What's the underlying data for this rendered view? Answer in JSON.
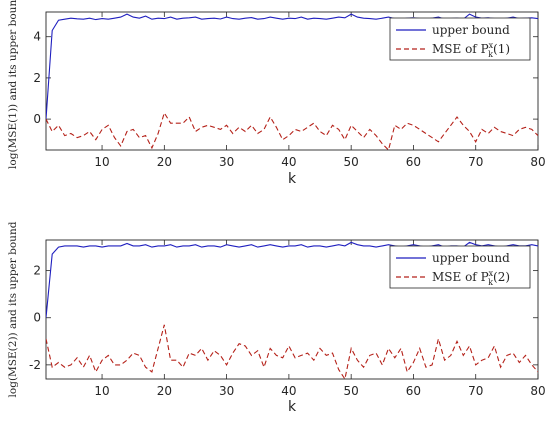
{
  "chart_data": [
    {
      "type": "line",
      "xlabel": "k",
      "ylabel": "log(MSE(1)) and its upper bound",
      "xlim": [
        1,
        80
      ],
      "ylim": [
        -1.5,
        5.2
      ],
      "xticks": [
        10,
        20,
        30,
        40,
        50,
        60,
        70,
        80
      ],
      "yticks": [
        0,
        2,
        4
      ],
      "legend_position": "top-right",
      "x": [
        1,
        2,
        3,
        4,
        5,
        6,
        7,
        8,
        9,
        10,
        11,
        12,
        13,
        14,
        15,
        16,
        17,
        18,
        19,
        20,
        21,
        22,
        23,
        24,
        25,
        26,
        27,
        28,
        29,
        30,
        31,
        32,
        33,
        34,
        35,
        36,
        37,
        38,
        39,
        40,
        41,
        42,
        43,
        44,
        45,
        46,
        47,
        48,
        49,
        50,
        51,
        52,
        53,
        54,
        55,
        56,
        57,
        58,
        59,
        60,
        61,
        62,
        63,
        64,
        65,
        66,
        67,
        68,
        69,
        70,
        71,
        72,
        73,
        74,
        75,
        76,
        77,
        78,
        79,
        80
      ],
      "series": [
        {
          "name": "upper bound",
          "label_text": "upper bound",
          "style": "solid",
          "color": "#1f1fbf",
          "values": [
            0.0,
            4.3,
            4.8,
            4.85,
            4.9,
            4.87,
            4.85,
            4.9,
            4.83,
            4.88,
            4.85,
            4.9,
            4.95,
            5.1,
            4.95,
            4.9,
            5.0,
            4.85,
            4.9,
            4.88,
            4.95,
            4.85,
            4.9,
            4.92,
            4.95,
            4.85,
            4.88,
            4.9,
            4.86,
            4.95,
            4.88,
            4.85,
            4.9,
            4.93,
            4.85,
            4.88,
            4.95,
            4.9,
            4.85,
            4.9,
            4.88,
            4.95,
            4.85,
            4.9,
            4.88,
            4.85,
            4.9,
            4.95,
            4.92,
            5.1,
            4.95,
            4.9,
            4.88,
            4.85,
            4.9,
            4.95,
            4.88,
            4.85,
            4.9,
            4.92,
            4.88,
            4.85,
            4.9,
            4.95,
            4.85,
            4.88,
            4.9,
            4.85,
            5.1,
            4.95,
            4.9,
            4.92,
            4.88,
            4.85,
            4.9,
            4.95,
            4.88,
            4.9,
            4.92,
            4.88
          ]
        },
        {
          "name": "MSE of P_k^x(1)",
          "label_text": "MSE of P",
          "label_sub": "k",
          "label_sup": "x",
          "label_tail": "(1)",
          "style": "dashed",
          "color": "#b5221a",
          "values": [
            0.0,
            -0.6,
            -0.3,
            -0.8,
            -0.7,
            -0.9,
            -0.8,
            -0.6,
            -1.0,
            -0.5,
            -0.3,
            -0.9,
            -1.3,
            -0.6,
            -0.5,
            -0.9,
            -0.8,
            -1.4,
            -0.7,
            0.3,
            -0.2,
            -0.2,
            -0.2,
            0.1,
            -0.6,
            -0.4,
            -0.3,
            -0.4,
            -0.5,
            -0.3,
            -0.7,
            -0.4,
            -0.6,
            -0.3,
            -0.7,
            -0.5,
            0.1,
            -0.4,
            -1.0,
            -0.8,
            -0.5,
            -0.6,
            -0.4,
            -0.2,
            -0.6,
            -0.8,
            -0.3,
            -0.5,
            -1.0,
            -0.3,
            -0.6,
            -0.9,
            -0.5,
            -0.8,
            -1.2,
            -1.5,
            -0.3,
            -0.5,
            -0.2,
            -0.3,
            -0.5,
            -0.7,
            -0.9,
            -1.1,
            -0.7,
            -0.3,
            0.1,
            -0.3,
            -0.6,
            -1.1,
            -0.5,
            -0.7,
            -0.4,
            -0.6,
            -0.7,
            -0.8,
            -0.5,
            -0.4,
            -0.5,
            -0.8
          ]
        }
      ]
    },
    {
      "type": "line",
      "xlabel": "k",
      "ylabel": "log(MSE(2)) and its upper bound",
      "xlim": [
        1,
        80
      ],
      "ylim": [
        -2.6,
        3.3
      ],
      "xticks": [
        10,
        20,
        30,
        40,
        50,
        60,
        70,
        80
      ],
      "yticks": [
        -2,
        0,
        2
      ],
      "legend_position": "top-right",
      "x": [
        1,
        2,
        3,
        4,
        5,
        6,
        7,
        8,
        9,
        10,
        11,
        12,
        13,
        14,
        15,
        16,
        17,
        18,
        19,
        20,
        21,
        22,
        23,
        24,
        25,
        26,
        27,
        28,
        29,
        30,
        31,
        32,
        33,
        34,
        35,
        36,
        37,
        38,
        39,
        40,
        41,
        42,
        43,
        44,
        45,
        46,
        47,
        48,
        49,
        50,
        51,
        52,
        53,
        54,
        55,
        56,
        57,
        58,
        59,
        60,
        61,
        62,
        63,
        64,
        65,
        66,
        67,
        68,
        69,
        70,
        71,
        72,
        73,
        74,
        75,
        76,
        77,
        78,
        79,
        80
      ],
      "series": [
        {
          "name": "upper bound",
          "label_text": "upper bound",
          "style": "solid",
          "color": "#1f1fbf",
          "values": [
            0.0,
            2.7,
            3.0,
            3.05,
            3.05,
            3.05,
            3.0,
            3.05,
            3.05,
            3.0,
            3.05,
            3.05,
            3.05,
            3.15,
            3.05,
            3.05,
            3.1,
            3.0,
            3.05,
            3.05,
            3.1,
            3.0,
            3.05,
            3.05,
            3.1,
            3.0,
            3.05,
            3.05,
            3.0,
            3.1,
            3.05,
            3.0,
            3.05,
            3.1,
            3.0,
            3.05,
            3.1,
            3.05,
            3.0,
            3.05,
            3.05,
            3.1,
            3.0,
            3.05,
            3.05,
            3.0,
            3.05,
            3.1,
            3.05,
            3.2,
            3.1,
            3.05,
            3.05,
            3.0,
            3.05,
            3.1,
            3.05,
            3.0,
            3.05,
            3.1,
            3.05,
            3.0,
            3.05,
            3.1,
            3.0,
            3.05,
            3.05,
            3.0,
            3.2,
            3.1,
            3.05,
            3.1,
            3.05,
            3.0,
            3.05,
            3.1,
            3.05,
            3.05,
            3.1,
            3.05
          ]
        },
        {
          "name": "MSE of P_k^x(2)",
          "label_text": "MSE of P",
          "label_sub": "k",
          "label_sup": "x",
          "label_tail": "(2)",
          "style": "dashed",
          "color": "#b5221a",
          "values": [
            -0.9,
            -2.1,
            -1.9,
            -2.1,
            -2.0,
            -1.7,
            -2.1,
            -1.6,
            -2.3,
            -1.8,
            -1.6,
            -2.0,
            -2.0,
            -1.8,
            -1.5,
            -1.6,
            -2.1,
            -2.3,
            -1.3,
            -0.3,
            -1.8,
            -1.8,
            -2.1,
            -1.5,
            -1.6,
            -1.3,
            -1.8,
            -1.4,
            -1.6,
            -2.0,
            -1.5,
            -1.1,
            -1.2,
            -1.6,
            -1.4,
            -2.1,
            -1.3,
            -1.6,
            -1.7,
            -1.2,
            -1.7,
            -1.6,
            -1.5,
            -1.8,
            -1.3,
            -1.6,
            -1.5,
            -2.2,
            -2.6,
            -1.3,
            -1.8,
            -2.1,
            -1.6,
            -1.5,
            -2.0,
            -1.3,
            -1.7,
            -1.3,
            -2.3,
            -1.9,
            -1.3,
            -2.1,
            -2.0,
            -0.9,
            -1.8,
            -1.6,
            -1.0,
            -1.6,
            -1.2,
            -2.0,
            -1.8,
            -1.7,
            -1.2,
            -2.1,
            -1.6,
            -1.5,
            -1.9,
            -1.6,
            -2.0,
            -2.3
          ]
        }
      ]
    }
  ]
}
